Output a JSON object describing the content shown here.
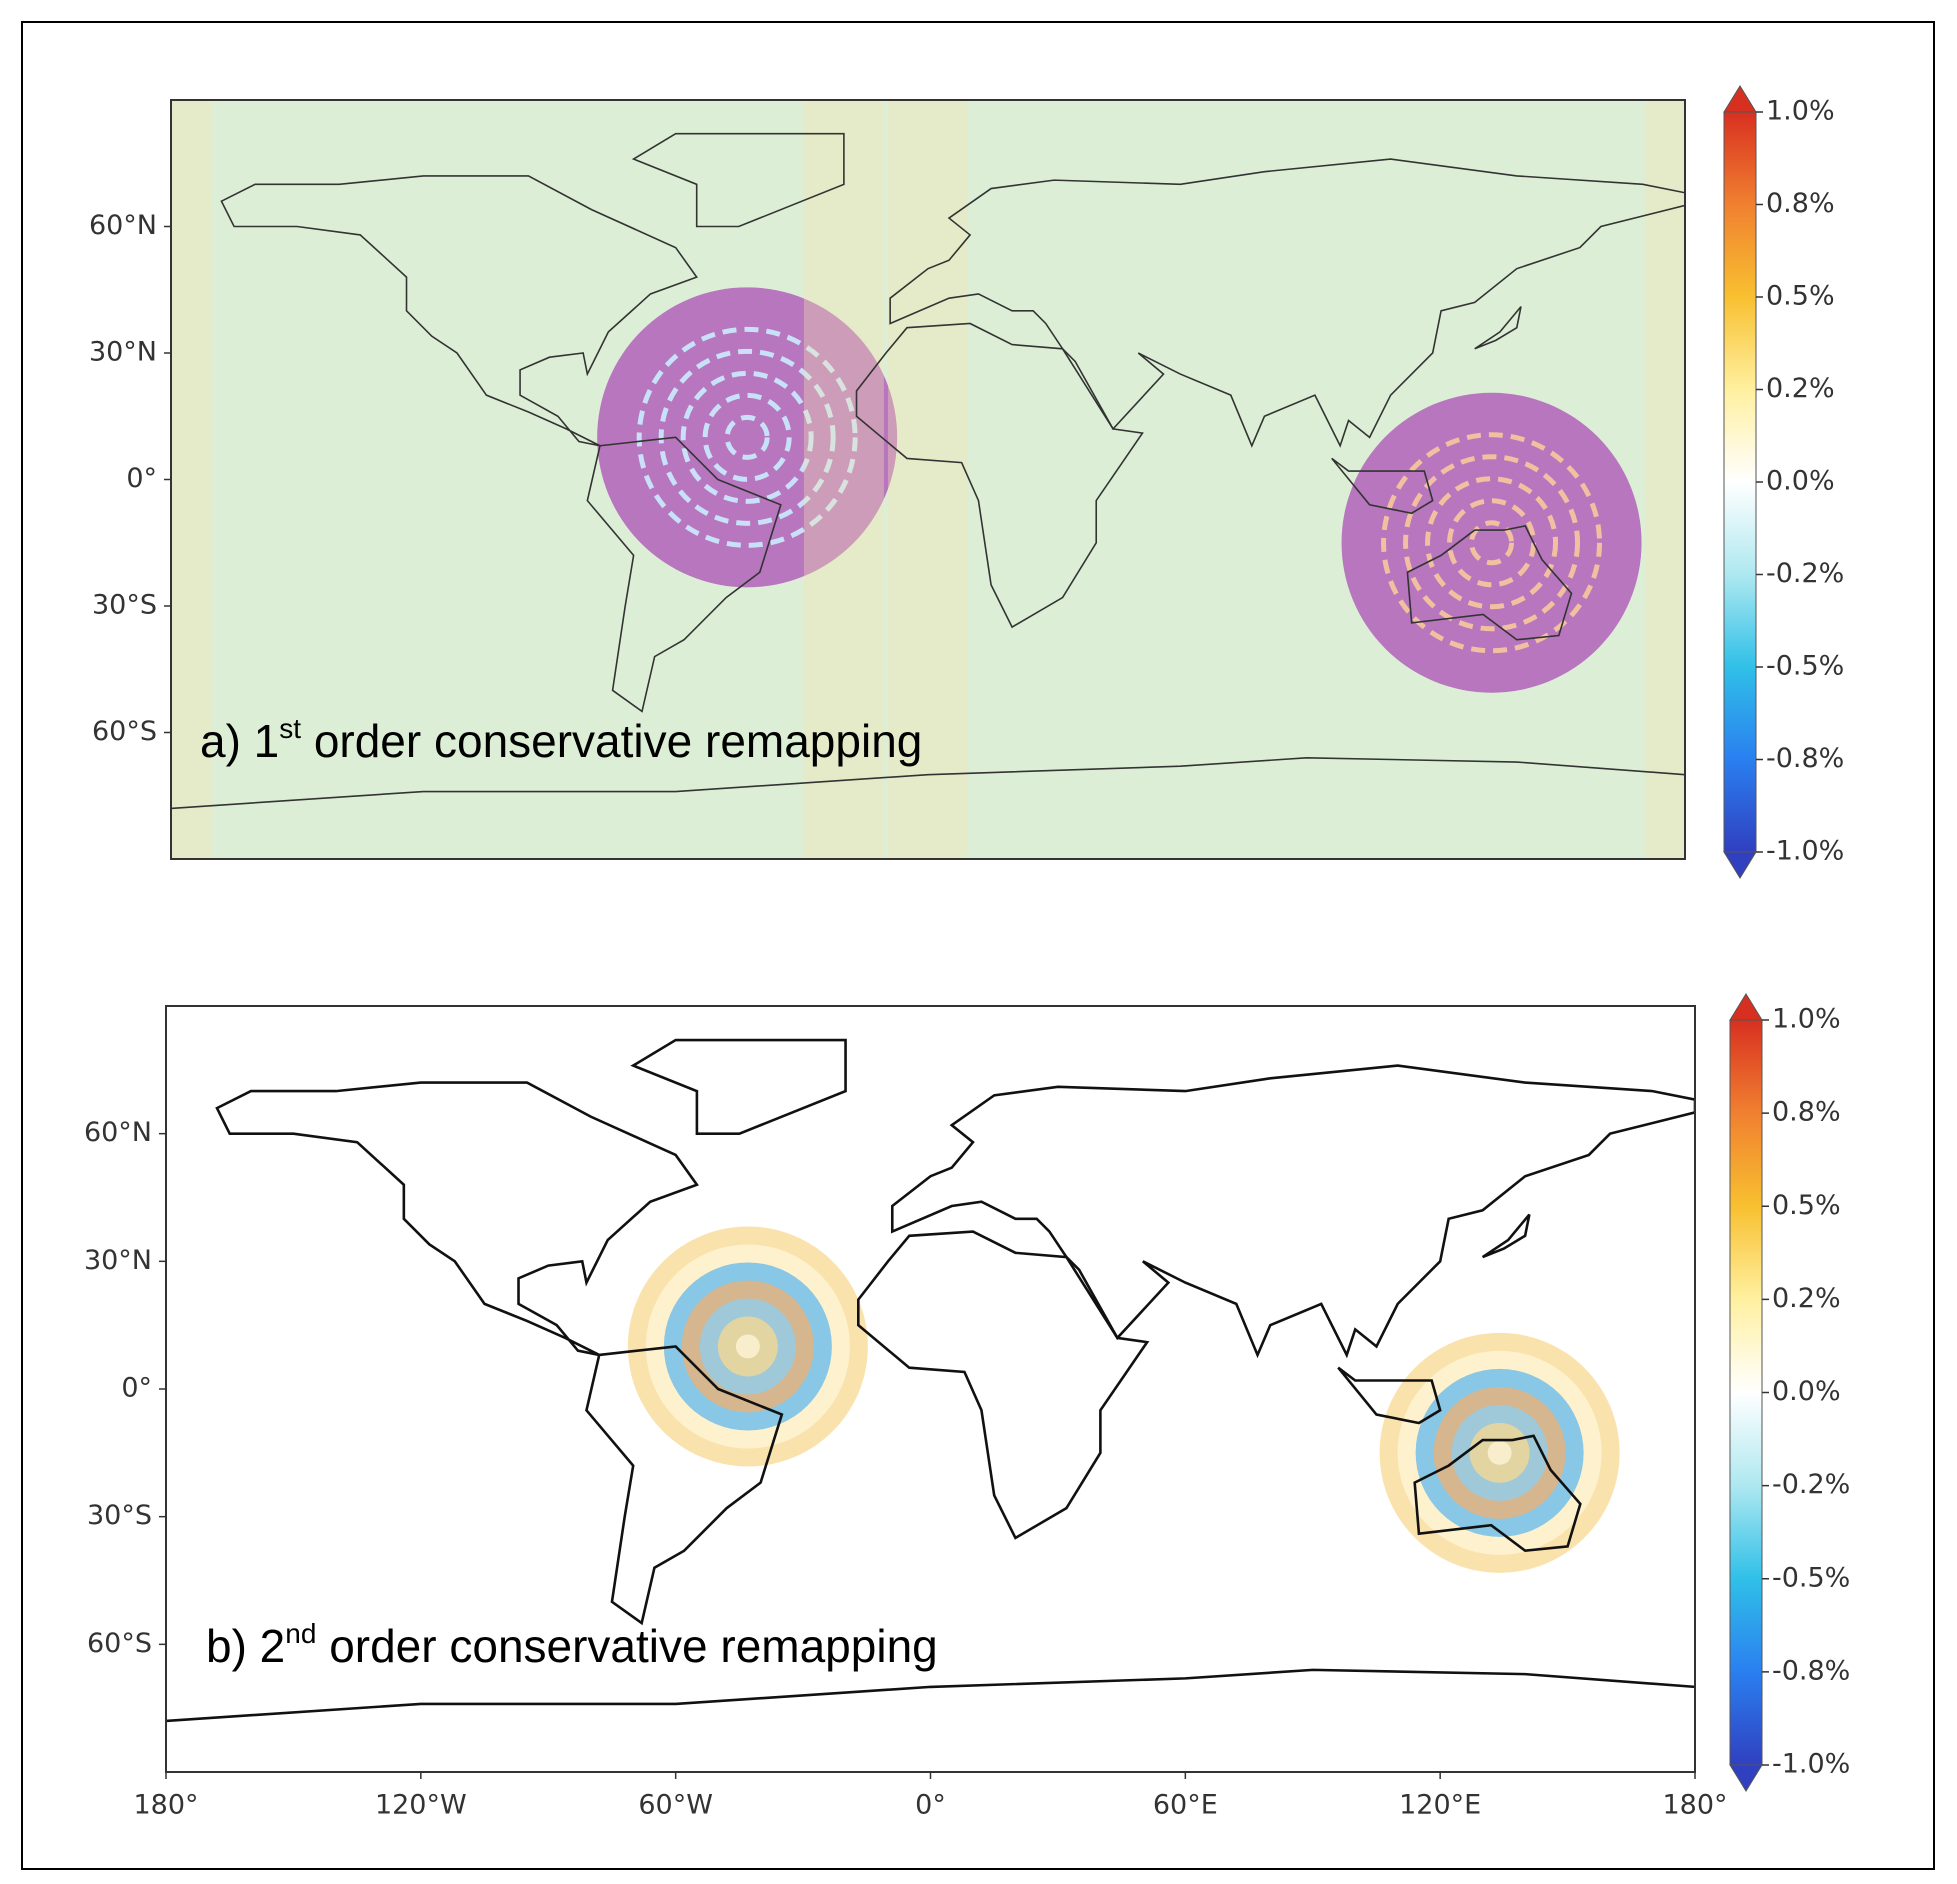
{
  "chart_data": [
    {
      "type": "map",
      "label_prefix": "a) 1",
      "label_superscript": "st",
      "label_suffix": " order conservative remapping",
      "xlim": [
        -180,
        180
      ],
      "ylim": [
        -90,
        90
      ],
      "yticks": [
        {
          "value": 60,
          "label": "60°N"
        },
        {
          "value": 30,
          "label": "30°N"
        },
        {
          "value": 0,
          "label": "0°"
        },
        {
          "value": -30,
          "label": "30°S"
        },
        {
          "value": -60,
          "label": "60°S"
        }
      ],
      "background": "#dcefd6",
      "colorbar": {
        "lim": [
          -1,
          1
        ],
        "extend": "both",
        "colors": [
          "#3040c0",
          "#2a7ff0",
          "#30c0e8",
          "#aee8f0",
          "#ffffff",
          "#fff0a0",
          "#f8c030",
          "#f08030",
          "#d83020"
        ],
        "ticks": [
          {
            "value": 1,
            "label": "1.0%"
          },
          {
            "value": 0.75,
            "label": "0.8%"
          },
          {
            "value": 0.5,
            "label": "0.5%"
          },
          {
            "value": 0.25,
            "label": "0.2%"
          },
          {
            "value": 0,
            "label": "0.0%"
          },
          {
            "value": -0.25,
            "label": "-0.2%"
          },
          {
            "value": -0.5,
            "label": "-0.5%"
          },
          {
            "value": -0.75,
            "label": "-0.8%"
          },
          {
            "value": -1,
            "label": "-1.0%"
          }
        ]
      }
    },
    {
      "type": "map",
      "label_prefix": "b) 2",
      "label_superscript": "nd",
      "label_suffix": " order conservative remapping",
      "xlim": [
        -180,
        180
      ],
      "ylim": [
        -90,
        90
      ],
      "xticks": [
        {
          "value": -180,
          "label": "180°"
        },
        {
          "value": -120,
          "label": "120°W"
        },
        {
          "value": -60,
          "label": "60°W"
        },
        {
          "value": 0,
          "label": "0°"
        },
        {
          "value": 60,
          "label": "60°E"
        },
        {
          "value": 120,
          "label": "120°E"
        },
        {
          "value": 180,
          "label": "180°"
        }
      ],
      "yticks": [
        {
          "value": 60,
          "label": "60°N"
        },
        {
          "value": 30,
          "label": "30°N"
        },
        {
          "value": 0,
          "label": "0°"
        },
        {
          "value": -30,
          "label": "30°S"
        },
        {
          "value": -60,
          "label": "60°S"
        }
      ],
      "background": "#ffffff",
      "colorbar": {
        "lim": [
          -1,
          1
        ],
        "extend": "both",
        "colors": [
          "#3040c0",
          "#2a7ff0",
          "#30c0e8",
          "#aee8f0",
          "#ffffff",
          "#fff0a0",
          "#f8c030",
          "#f08030",
          "#d83020"
        ],
        "ticks": [
          {
            "value": 1,
            "label": "1.0%"
          },
          {
            "value": 0.75,
            "label": "0.8%"
          },
          {
            "value": 0.5,
            "label": "0.5%"
          },
          {
            "value": 0.25,
            "label": "0.2%"
          },
          {
            "value": 0,
            "label": "0.0%"
          },
          {
            "value": -0.25,
            "label": "-0.2%"
          },
          {
            "value": -0.5,
            "label": "-0.5%"
          },
          {
            "value": -0.75,
            "label": "-0.8%"
          },
          {
            "value": -1,
            "label": "-1.0%"
          }
        ]
      }
    }
  ]
}
